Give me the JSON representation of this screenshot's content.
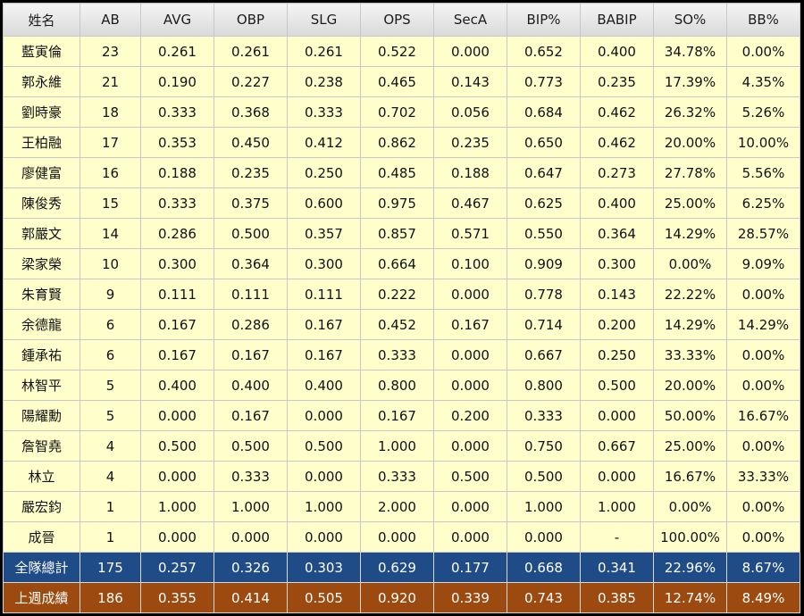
{
  "columns": [
    "姓名",
    "AB",
    "AVG",
    "OBP",
    "SLG",
    "OPS",
    "SecA",
    "BIP%",
    "BABIP",
    "SO%",
    "BB%"
  ],
  "players": [
    [
      "藍寅倫",
      "23",
      "0.261",
      "0.261",
      "0.261",
      "0.522",
      "0.000",
      "0.652",
      "0.400",
      "34.78%",
      "0.00%"
    ],
    [
      "郭永維",
      "21",
      "0.190",
      "0.227",
      "0.238",
      "0.465",
      "0.143",
      "0.773",
      "0.235",
      "17.39%",
      "4.35%"
    ],
    [
      "劉時豪",
      "18",
      "0.333",
      "0.368",
      "0.333",
      "0.702",
      "0.056",
      "0.684",
      "0.462",
      "26.32%",
      "5.26%"
    ],
    [
      "王柏融",
      "17",
      "0.353",
      "0.450",
      "0.412",
      "0.862",
      "0.235",
      "0.650",
      "0.462",
      "20.00%",
      "10.00%"
    ],
    [
      "廖健富",
      "16",
      "0.188",
      "0.235",
      "0.250",
      "0.485",
      "0.188",
      "0.647",
      "0.273",
      "27.78%",
      "5.56%"
    ],
    [
      "陳俊秀",
      "15",
      "0.333",
      "0.375",
      "0.600",
      "0.975",
      "0.467",
      "0.625",
      "0.400",
      "25.00%",
      "6.25%"
    ],
    [
      "郭嚴文",
      "14",
      "0.286",
      "0.500",
      "0.357",
      "0.857",
      "0.571",
      "0.550",
      "0.364",
      "14.29%",
      "28.57%"
    ],
    [
      "梁家榮",
      "10",
      "0.300",
      "0.364",
      "0.300",
      "0.664",
      "0.100",
      "0.909",
      "0.300",
      "0.00%",
      "9.09%"
    ],
    [
      "朱育賢",
      "9",
      "0.111",
      "0.111",
      "0.111",
      "0.222",
      "0.000",
      "0.778",
      "0.143",
      "22.22%",
      "0.00%"
    ],
    [
      "余德龍",
      "6",
      "0.167",
      "0.286",
      "0.167",
      "0.452",
      "0.167",
      "0.714",
      "0.200",
      "14.29%",
      "14.29%"
    ],
    [
      "鍾承祐",
      "6",
      "0.167",
      "0.167",
      "0.167",
      "0.333",
      "0.000",
      "0.667",
      "0.250",
      "33.33%",
      "0.00%"
    ],
    [
      "林智平",
      "5",
      "0.400",
      "0.400",
      "0.400",
      "0.800",
      "0.000",
      "0.800",
      "0.500",
      "20.00%",
      "0.00%"
    ],
    [
      "陽耀勳",
      "5",
      "0.000",
      "0.167",
      "0.000",
      "0.167",
      "0.200",
      "0.333",
      "0.000",
      "50.00%",
      "16.67%"
    ],
    [
      "詹智堯",
      "4",
      "0.500",
      "0.500",
      "0.500",
      "1.000",
      "0.000",
      "0.750",
      "0.667",
      "25.00%",
      "0.00%"
    ],
    [
      "林立",
      "4",
      "0.000",
      "0.333",
      "0.000",
      "0.333",
      "0.500",
      "0.500",
      "0.000",
      "16.67%",
      "33.33%"
    ],
    [
      "嚴宏鈞",
      "1",
      "1.000",
      "1.000",
      "1.000",
      "2.000",
      "0.000",
      "1.000",
      "1.000",
      "0.00%",
      "0.00%"
    ],
    [
      "成晉",
      "1",
      "0.000",
      "0.000",
      "0.000",
      "0.000",
      "0.000",
      "0.000",
      "-",
      "100.00%",
      "0.00%"
    ]
  ],
  "team_total": [
    "全隊總計",
    "175",
    "0.257",
    "0.326",
    "0.303",
    "0.629",
    "0.177",
    "0.668",
    "0.341",
    "22.96%",
    "8.67%"
  ],
  "last_week": [
    "上週成績",
    "186",
    "0.355",
    "0.414",
    "0.505",
    "0.920",
    "0.339",
    "0.743",
    "0.385",
    "12.74%",
    "8.49%"
  ],
  "colors": {
    "row_bg": "#ffffcc",
    "header_bg": "#e6e6e6",
    "total_bg": "#1f4b86",
    "last_week_bg": "#9c4a0f"
  }
}
